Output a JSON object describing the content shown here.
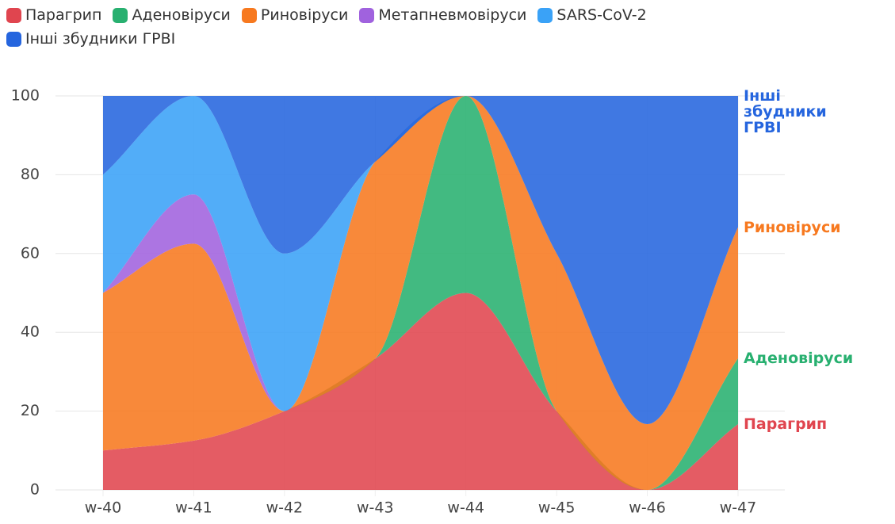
{
  "chart_data": {
    "type": "stacked-area",
    "categories": [
      "w-40",
      "w-41",
      "w-42",
      "w-43",
      "w-44",
      "w-45",
      "w-46",
      "w-47"
    ],
    "series": [
      {
        "name": "Парагрип",
        "color": "#e0454f",
        "values": [
          10,
          12.5,
          20,
          33.3,
          50,
          20,
          0,
          16.7
        ]
      },
      {
        "name": "Аденовіруси",
        "color": "#28b070",
        "values": [
          0,
          0,
          0,
          0,
          50,
          0,
          0,
          16.7
        ]
      },
      {
        "name": "Риновіруси",
        "color": "#f7791f",
        "values": [
          40,
          50,
          0,
          50,
          0,
          40,
          16.7,
          33.3
        ]
      },
      {
        "name": "Метапневмовіруси",
        "color": "#a062de",
        "values": [
          0,
          12.5,
          0,
          0,
          0,
          0,
          0,
          0
        ]
      },
      {
        "name": "SARS-CoV-2",
        "color": "#3aa2f7",
        "values": [
          30,
          25,
          40,
          0,
          0,
          0,
          0,
          0
        ]
      },
      {
        "name": "Інші збудники ГРВІ",
        "color": "#2565de",
        "values": [
          20,
          0,
          40,
          16.7,
          0,
          40,
          83.3,
          33.3
        ]
      }
    ],
    "ylim": [
      0,
      100
    ],
    "yticks": [
      0,
      20,
      40,
      60,
      80,
      100
    ],
    "grid": true,
    "legend": "top-left"
  }
}
